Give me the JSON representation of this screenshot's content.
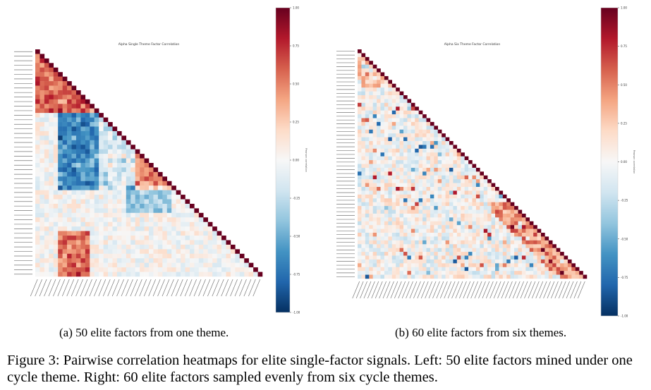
{
  "figure": {
    "caption_label": "Figure 3:",
    "caption_text": "Pairwise correlation heatmaps for elite single-factor signals. Left: 50 elite factors mined under one cycle theme. Right: 60 elite factors sampled evenly from six cycle themes."
  },
  "colors": {
    "cmap": [
      "#053061",
      "#2166ac",
      "#4393c3",
      "#92c5de",
      "#d1e5f0",
      "#f7f7f7",
      "#fddbc7",
      "#f4a582",
      "#d6604d",
      "#b2182b",
      "#67001f"
    ]
  },
  "chart_data": [
    {
      "id": "a",
      "type": "heatmap",
      "subcaption": "(a) 50 elite factors from one theme.",
      "title": "Alpha Single Theme Factor Correlation",
      "n_factors": 50,
      "triangle": "lower",
      "diagonal_value": 1.0,
      "colorbar": {
        "range": [
          -1.0,
          1.0
        ],
        "ticks": [
          "1.00",
          "0.75",
          "0.50",
          "0.25",
          "0.00",
          "-0.25",
          "-0.50",
          "-0.75",
          "-1.00"
        ],
        "label": "Pearson correlation"
      },
      "structure": "Strong positive blocks among early factors; a cluster of strong negative correlations between factors 14-30 and 6-22; mostly weak correlations elsewhere.",
      "seed": 11
    },
    {
      "id": "b",
      "type": "heatmap",
      "subcaption": "(b) 60 elite factors from six themes.",
      "title": "Alpha Six Theme Factor Correlation",
      "n_factors": 60,
      "triangle": "lower",
      "diagonal_value": 1.0,
      "colorbar": {
        "range": [
          -1.0,
          1.0
        ],
        "ticks": [
          "1.00",
          "0.75",
          "0.50",
          "0.25",
          "0.00",
          "-0.25",
          "-0.50",
          "-0.75",
          "-1.00"
        ],
        "label": "Pearson correlation"
      },
      "structure": "Mostly weak correlations (near 0) with scattered mild positive and negative cells; a few moderate positive blocks near the lower-right diagonal.",
      "seed": 29
    }
  ]
}
